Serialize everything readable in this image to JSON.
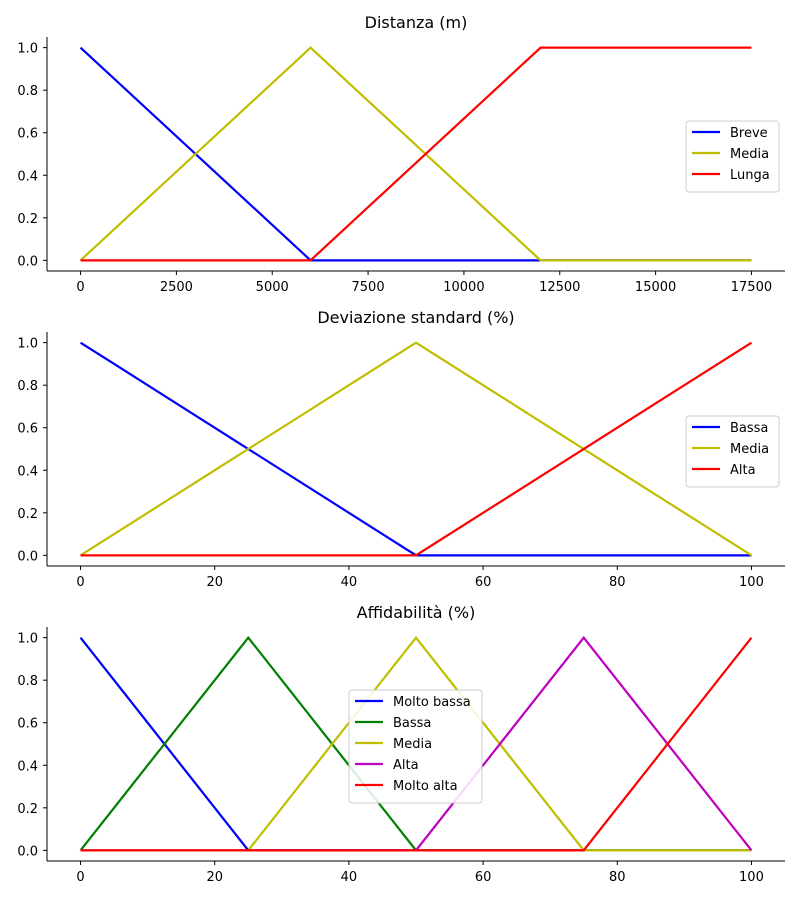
{
  "chart_data": [
    {
      "type": "line",
      "title": "Distanza (m)",
      "xlabel": "",
      "ylabel": "",
      "xlim": [
        -875,
        18375
      ],
      "ylim": [
        -0.05,
        1.05
      ],
      "xticks": [
        0,
        2500,
        5000,
        7500,
        10000,
        12500,
        15000,
        17500
      ],
      "xtick_labels": [
        "0",
        "2500",
        "5000",
        "7500",
        "10000",
        "12500",
        "15000",
        "17500"
      ],
      "yticks": [
        0,
        0.2,
        0.4,
        0.6,
        0.8,
        1.0
      ],
      "ytick_labels": [
        "0.0",
        "0.2",
        "0.4",
        "0.6",
        "0.8",
        "1.0"
      ],
      "grid": false,
      "legend_position": "right",
      "series": [
        {
          "name": "Breve",
          "color": "#0000ff",
          "x": [
            0,
            6000,
            17500
          ],
          "y": [
            1,
            0,
            0
          ]
        },
        {
          "name": "Media",
          "color": "#bfbf00",
          "x": [
            0,
            6000,
            12000,
            17500
          ],
          "y": [
            0,
            1,
            0,
            0
          ]
        },
        {
          "name": "Lunga",
          "color": "#ff0000",
          "x": [
            0,
            6000,
            12000,
            17500
          ],
          "y": [
            0,
            0,
            1,
            1
          ]
        }
      ]
    },
    {
      "type": "line",
      "title": "Deviazione standard (%)",
      "xlabel": "",
      "ylabel": "",
      "xlim": [
        -5,
        105
      ],
      "ylim": [
        -0.05,
        1.05
      ],
      "xticks": [
        0,
        20,
        40,
        60,
        80,
        100
      ],
      "xtick_labels": [
        "0",
        "20",
        "40",
        "60",
        "80",
        "100"
      ],
      "yticks": [
        0,
        0.2,
        0.4,
        0.6,
        0.8,
        1.0
      ],
      "ytick_labels": [
        "0.0",
        "0.2",
        "0.4",
        "0.6",
        "0.8",
        "1.0"
      ],
      "grid": false,
      "legend_position": "right",
      "series": [
        {
          "name": "Bassa",
          "color": "#0000ff",
          "x": [
            0,
            50,
            100
          ],
          "y": [
            1,
            0,
            0
          ]
        },
        {
          "name": "Media",
          "color": "#bfbf00",
          "x": [
            0,
            50,
            100
          ],
          "y": [
            0,
            1,
            0
          ]
        },
        {
          "name": "Alta",
          "color": "#ff0000",
          "x": [
            0,
            50,
            100
          ],
          "y": [
            0,
            0,
            1
          ]
        }
      ]
    },
    {
      "type": "line",
      "title": "Affidabilità (%)",
      "xlabel": "",
      "ylabel": "",
      "xlim": [
        -5,
        105
      ],
      "ylim": [
        -0.05,
        1.05
      ],
      "xticks": [
        0,
        20,
        40,
        60,
        80,
        100
      ],
      "xtick_labels": [
        "0",
        "20",
        "40",
        "60",
        "80",
        "100"
      ],
      "yticks": [
        0,
        0.2,
        0.4,
        0.6,
        0.8,
        1.0
      ],
      "ytick_labels": [
        "0.0",
        "0.2",
        "0.4",
        "0.6",
        "0.8",
        "1.0"
      ],
      "grid": false,
      "legend_position": "center",
      "series": [
        {
          "name": "Molto bassa",
          "color": "#0000ff",
          "x": [
            0,
            25,
            100
          ],
          "y": [
            1,
            0,
            0
          ]
        },
        {
          "name": "Bassa",
          "color": "#008000",
          "x": [
            0,
            25,
            50,
            100
          ],
          "y": [
            0,
            1,
            0,
            0
          ]
        },
        {
          "name": "Media",
          "color": "#bfbf00",
          "x": [
            0,
            25,
            50,
            75,
            100
          ],
          "y": [
            0,
            0,
            1,
            0,
            0
          ]
        },
        {
          "name": "Alta",
          "color": "#bf00bf",
          "x": [
            0,
            50,
            75,
            100
          ],
          "y": [
            0,
            0,
            1,
            0
          ]
        },
        {
          "name": "Molto alta",
          "color": "#ff0000",
          "x": [
            0,
            75,
            100
          ],
          "y": [
            0,
            0,
            1
          ]
        }
      ]
    }
  ]
}
